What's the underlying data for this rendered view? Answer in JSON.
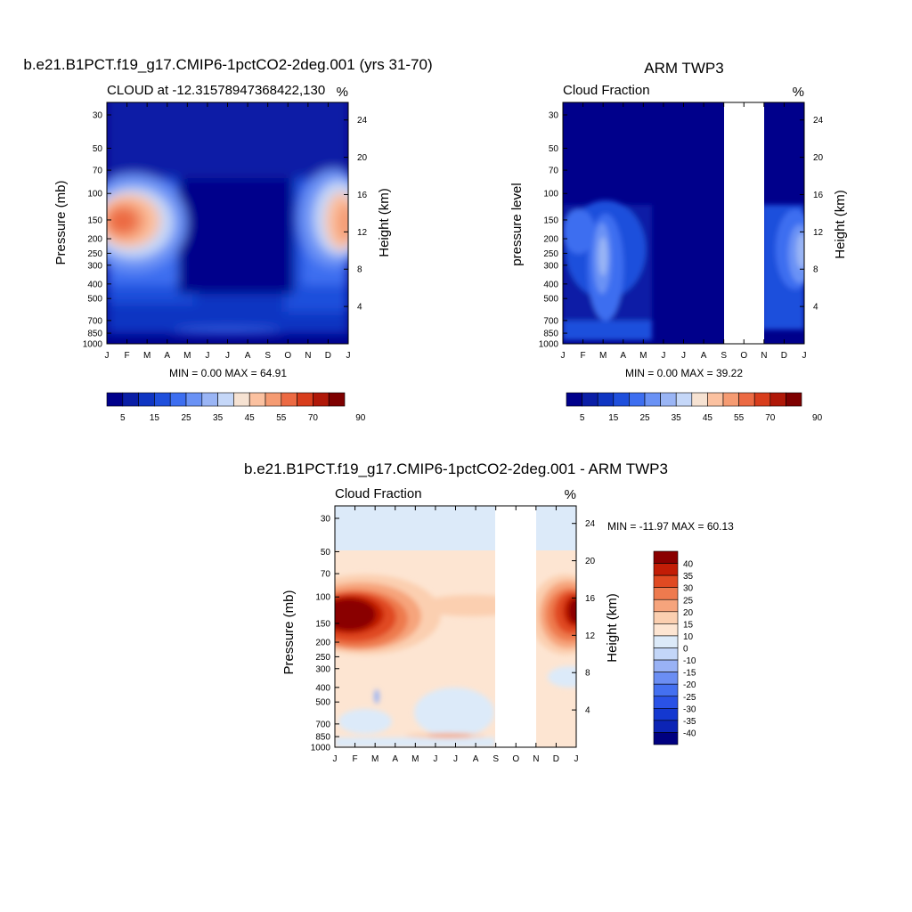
{
  "figure": {
    "panel1": {
      "title": "b.e21.B1PCT.f19_g17.CMIP6-1pctCO2-2deg.001 (yrs 31-70)",
      "left_string": "CLOUD at -12.31578947368422,130",
      "right_string": "%",
      "ylabel_left": "Pressure (mb)",
      "ylabel_right": "Height (km)",
      "stats": "MIN =   0.00 MAX =  64.91"
    },
    "panel2": {
      "title": "ARM TWP3",
      "left_string": "Cloud Fraction",
      "right_string": "%",
      "ylabel_left": "pressure level",
      "ylabel_right": "Height (km)",
      "stats": "MIN =   0.00 MAX =  39.22"
    },
    "panel3": {
      "title": "b.e21.B1PCT.f19_g17.CMIP6-1pctCO2-2deg.001 - ARM TWP3",
      "left_string": "Cloud Fraction",
      "right_string": "%",
      "ylabel_left": "Pressure (mb)",
      "ylabel_right": "Height (km)",
      "stats": "MIN = -11.97 MAX =  60.13"
    },
    "colors": {
      "cloud_scale": [
        "#00008b",
        "#0a1ea6",
        "#0f35c2",
        "#1f4fdc",
        "#3d6ef0",
        "#6a92f5",
        "#9ab5f5",
        "#c5d7f8",
        "#f6e2d2",
        "#fbc1a0",
        "#f59b72",
        "#ec6a43",
        "#d83d1c",
        "#b01808",
        "#7e0000"
      ],
      "diff_scale": [
        "#000080",
        "#0c24b5",
        "#1438d0",
        "#2a52e6",
        "#4470f0",
        "#6b8ef3",
        "#99b2f5",
        "#c3d6f8",
        "#dceaf9",
        "#fde5d2",
        "#fbcfb0",
        "#f6a47c",
        "#ee7a4e",
        "#e04a22",
        "#c21d06",
        "#8a0000"
      ]
    }
  },
  "chart_data": [
    {
      "type": "heatmap",
      "title": "b.e21.B1PCT.f19_g17.CMIP6-1pctCO2-2deg.001 (yrs 31-70)",
      "xlabel": "",
      "ylabel": "Pressure (mb)",
      "ylabel_right": "Height (km)",
      "x_ticks": [
        "J",
        "F",
        "M",
        "A",
        "M",
        "J",
        "J",
        "A",
        "S",
        "O",
        "N",
        "D",
        "J"
      ],
      "y_ticks": [
        30,
        50,
        70,
        100,
        150,
        200,
        250,
        300,
        400,
        500,
        700,
        850,
        1000
      ],
      "y_right_ticks": [
        4,
        8,
        12,
        16,
        20,
        24
      ],
      "colorbar_ticks": [
        5,
        15,
        25,
        35,
        45,
        55,
        70,
        90
      ],
      "min": 0.0,
      "max": 64.91,
      "features": [
        {
          "month": 1.0,
          "pressure_mb": 150,
          "value": 60
        },
        {
          "month": 12.0,
          "pressure_mb": 150,
          "value": 55
        },
        {
          "month": 3.0,
          "pressure_mb": 250,
          "value": 25
        },
        {
          "month": 7.0,
          "pressure_mb": 400,
          "value": 2
        }
      ]
    },
    {
      "type": "heatmap",
      "title": "ARM TWP3",
      "xlabel": "",
      "ylabel": "pressure level",
      "ylabel_right": "Height (km)",
      "x_ticks": [
        "J",
        "F",
        "M",
        "A",
        "M",
        "J",
        "J",
        "A",
        "S",
        "O",
        "N",
        "D",
        "J"
      ],
      "y_ticks": [
        30,
        50,
        70,
        100,
        150,
        200,
        250,
        300,
        400,
        500,
        700,
        850,
        1000
      ],
      "y_right_ticks": [
        4,
        8,
        12,
        16,
        20,
        24
      ],
      "colorbar_ticks": [
        5,
        15,
        25,
        35,
        45,
        55,
        70,
        90
      ],
      "min": 0.0,
      "max": 39.22,
      "missing_months": [
        "S",
        "O"
      ],
      "features": [
        {
          "month": 3.0,
          "pressure_mb": 250,
          "value": 30
        },
        {
          "month": 12.5,
          "pressure_mb": 250,
          "value": 30
        },
        {
          "month": 2.0,
          "pressure_mb": 150,
          "value": 15
        }
      ]
    },
    {
      "type": "heatmap",
      "title": "b.e21.B1PCT.f19_g17.CMIP6-1pctCO2-2deg.001 - ARM TWP3",
      "xlabel": "",
      "ylabel": "Pressure (mb)",
      "ylabel_right": "Height (km)",
      "x_ticks": [
        "J",
        "F",
        "M",
        "A",
        "M",
        "J",
        "J",
        "A",
        "S",
        "O",
        "N",
        "D",
        "J"
      ],
      "y_ticks": [
        30,
        50,
        70,
        100,
        150,
        200,
        250,
        300,
        400,
        500,
        700,
        850,
        1000
      ],
      "y_right_ticks": [
        4,
        8,
        12,
        16,
        20,
        24
      ],
      "colorbar_ticks": [
        40,
        35,
        30,
        25,
        20,
        15,
        10,
        0,
        -10,
        -15,
        -20,
        -25,
        -30,
        -35,
        -40
      ],
      "min": -11.97,
      "max": 60.13,
      "missing_months": [
        "S",
        "O"
      ],
      "features": [
        {
          "month": 1.0,
          "pressure_mb": 130,
          "value": 50
        },
        {
          "month": 12.8,
          "pressure_mb": 120,
          "value": 45
        },
        {
          "month": 7.0,
          "pressure_mb": 800,
          "value": 20
        },
        {
          "month": 2.0,
          "pressure_mb": 30,
          "value": -5
        }
      ]
    }
  ]
}
